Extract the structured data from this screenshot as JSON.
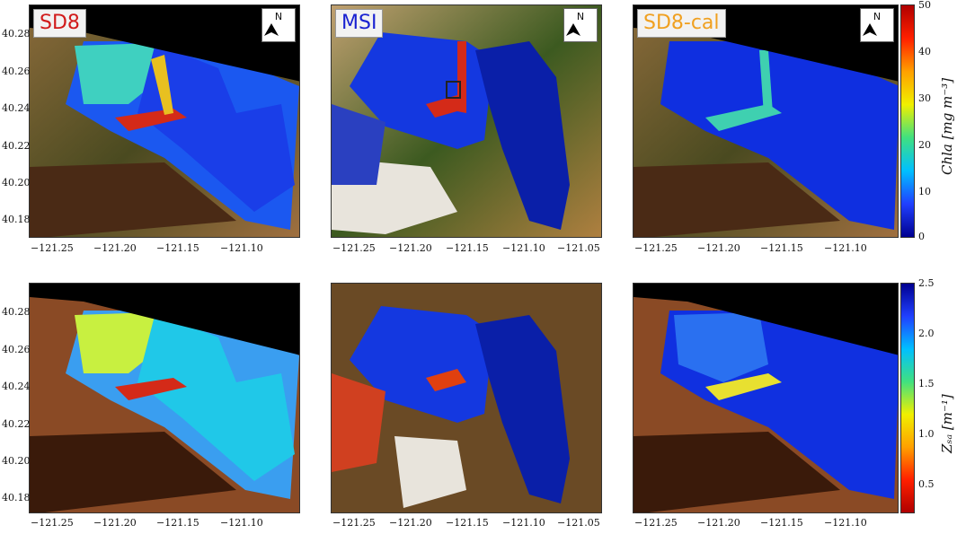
{
  "panels": [
    {
      "id": "sd8-chla",
      "badge": "SD8",
      "badge_color": "#d11a1a",
      "north": "N",
      "row": 0,
      "col": 0
    },
    {
      "id": "msi-chla",
      "badge": "MSI",
      "badge_color": "#1a22d1",
      "north": "N",
      "row": 0,
      "col": 1
    },
    {
      "id": "sd8cal-chla",
      "badge": "SD8-cal",
      "badge_color": "#f0a020",
      "north": "N",
      "row": 0,
      "col": 2
    },
    {
      "id": "sd8-zsd",
      "badge": "",
      "north": "",
      "row": 1,
      "col": 0
    },
    {
      "id": "msi-zsd",
      "badge": "",
      "north": "",
      "row": 1,
      "col": 1
    },
    {
      "id": "sd8cal-zsd",
      "badge": "",
      "north": "",
      "row": 1,
      "col": 2
    }
  ],
  "y_ticks": [
    "40.28",
    "40.26",
    "40.24",
    "40.22",
    "40.20",
    "40.18"
  ],
  "x_ticks_a": [
    "−121.25",
    "−121.20",
    "−121.15",
    "−121.10"
  ],
  "x_ticks_b": [
    "−121.25",
    "−121.20",
    "−121.15",
    "−121.10",
    "−121.05"
  ],
  "colorbars": {
    "chla": {
      "label": "Chla [mg m⁻³]",
      "ticks": [
        "50",
        "40",
        "30",
        "20",
        "10",
        "0"
      ],
      "colormap": "jet"
    },
    "zsd": {
      "label": "Zₛₐ [m⁻¹]",
      "ticks": [
        "2.5",
        "2.0",
        "1.5",
        "1.0",
        "0.5"
      ],
      "colormap": "jet_r"
    }
  },
  "colors": {
    "lake_deep": "#0a1fd8",
    "lake_mid": "#1e6cff",
    "bloom": "#d42a18",
    "land_dark": "#3c3a1a",
    "land_mid": "#6b5a2a",
    "no_data": "#000000"
  }
}
